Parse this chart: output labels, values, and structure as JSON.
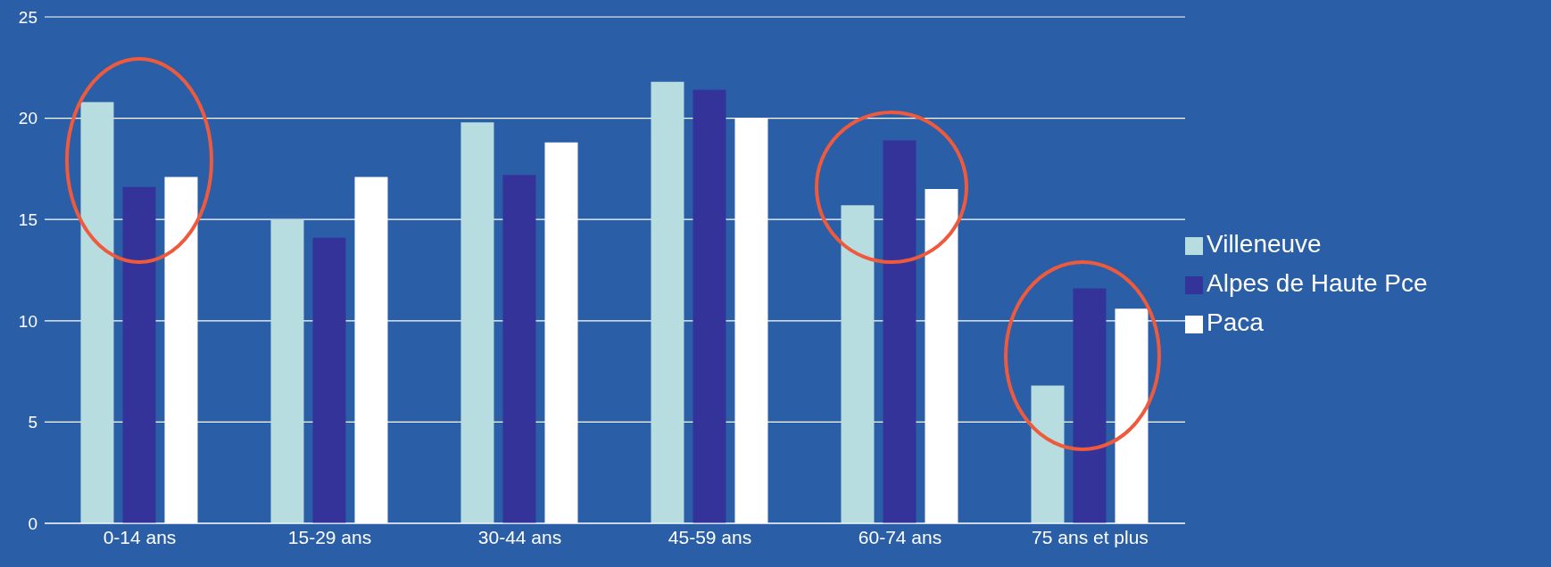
{
  "chart_data": {
    "type": "bar",
    "categories": [
      "0-14 ans",
      "15-29 ans",
      "30-44 ans",
      "45-59 ans",
      "60-74 ans",
      "75 ans et plus"
    ],
    "series": [
      {
        "name": "Villeneuve",
        "color": "#b7dde0",
        "values": [
          20.8,
          15.0,
          19.8,
          21.8,
          15.7,
          6.8
        ]
      },
      {
        "name": "Alpes de Haute Pce",
        "color": "#333399",
        "values": [
          16.6,
          14.1,
          17.2,
          21.4,
          18.9,
          11.6
        ]
      },
      {
        "name": "Paca",
        "color": "#ffffff",
        "values": [
          17.1,
          17.1,
          18.8,
          20.0,
          16.5,
          10.6
        ]
      }
    ],
    "ylim": [
      0,
      25
    ],
    "yticks": [
      0,
      5,
      10,
      15,
      20,
      25
    ],
    "grid": "y",
    "legend": "right"
  }
}
